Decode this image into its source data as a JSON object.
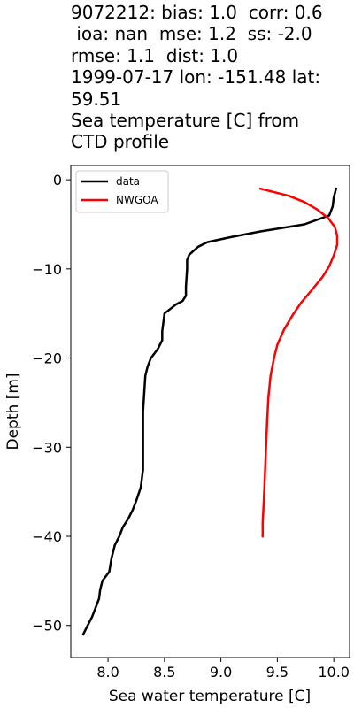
{
  "title_lines": [
    "9072212: bias: 1.0  corr: 0.6",
    " ioa: nan  mse: 1.2  ss: -2.0",
    "rmse: 1.1  dist: 1.0",
    "1999-07-17 lon: -151.48 lat:",
    "59.51",
    "Sea temperature [C] from",
    "CTD profile"
  ],
  "chart_data": {
    "type": "line",
    "xlabel": "Sea water temperature [C]",
    "ylabel": "Depth [m]",
    "xlim": [
      7.67,
      10.14
    ],
    "ylim": [
      -53.6,
      1.6
    ],
    "xticks": [
      8.0,
      8.5,
      9.0,
      9.5,
      10.0
    ],
    "xtick_labels": [
      "8.0",
      "8.5",
      "9.0",
      "9.5",
      "10.0"
    ],
    "yticks": [
      0,
      -10,
      -20,
      -30,
      -40,
      -50
    ],
    "ytick_labels": [
      "0",
      "−10",
      "−20",
      "−30",
      "−40",
      "−50"
    ],
    "grid": false,
    "legend_position": "top-left",
    "series": [
      {
        "name": "data",
        "color": "#000000",
        "points": [
          [
            10.02,
            -1.0
          ],
          [
            10.0,
            -2.0
          ],
          [
            9.99,
            -3.0
          ],
          [
            9.96,
            -4.0
          ],
          [
            9.74,
            -5.0
          ],
          [
            9.35,
            -5.8
          ],
          [
            9.1,
            -6.4
          ],
          [
            8.88,
            -7.0
          ],
          [
            8.8,
            -7.5
          ],
          [
            8.72,
            -8.4
          ],
          [
            8.7,
            -9.0
          ],
          [
            8.7,
            -10.0
          ],
          [
            8.69,
            -12.0
          ],
          [
            8.69,
            -13.0
          ],
          [
            8.66,
            -13.6
          ],
          [
            8.6,
            -14.0
          ],
          [
            8.54,
            -14.6
          ],
          [
            8.5,
            -15.0
          ],
          [
            8.49,
            -16.0
          ],
          [
            8.48,
            -17.0
          ],
          [
            8.48,
            -18.0
          ],
          [
            8.44,
            -19.0
          ],
          [
            8.38,
            -20.0
          ],
          [
            8.35,
            -21.0
          ],
          [
            8.33,
            -22.0
          ],
          [
            8.32,
            -24.0
          ],
          [
            8.31,
            -26.0
          ],
          [
            8.31,
            -32.5
          ],
          [
            8.29,
            -34.5
          ],
          [
            8.25,
            -36.0
          ],
          [
            8.22,
            -37.0
          ],
          [
            8.18,
            -38.0
          ],
          [
            8.13,
            -39.0
          ],
          [
            8.1,
            -40.0
          ],
          [
            8.06,
            -41.0
          ],
          [
            8.03,
            -42.5
          ],
          [
            8.01,
            -44.0
          ],
          [
            7.95,
            -45.0
          ],
          [
            7.93,
            -46.0
          ],
          [
            7.92,
            -47.0
          ],
          [
            7.89,
            -48.0
          ],
          [
            7.86,
            -49.0
          ],
          [
            7.82,
            -50.0
          ],
          [
            7.78,
            -51.0
          ]
        ]
      },
      {
        "name": "NWGOA",
        "color": "#ff0000",
        "points": [
          [
            9.35,
            -1.0
          ],
          [
            9.6,
            -1.8
          ],
          [
            9.74,
            -2.5
          ],
          [
            9.85,
            -3.3
          ],
          [
            9.95,
            -4.3
          ],
          [
            10.01,
            -5.3
          ],
          [
            10.03,
            -6.3
          ],
          [
            10.03,
            -7.3
          ],
          [
            10.0,
            -8.5
          ],
          [
            9.96,
            -9.7
          ],
          [
            9.9,
            -10.9
          ],
          [
            9.81,
            -12.3
          ],
          [
            9.71,
            -13.8
          ],
          [
            9.64,
            -15.1
          ],
          [
            9.56,
            -16.8
          ],
          [
            9.5,
            -18.5
          ],
          [
            9.47,
            -20.0
          ],
          [
            9.44,
            -22.0
          ],
          [
            9.42,
            -24.5
          ],
          [
            9.41,
            -27.0
          ],
          [
            9.4,
            -30.0
          ],
          [
            9.39,
            -33.0
          ],
          [
            9.38,
            -36.0
          ],
          [
            9.37,
            -38.5
          ],
          [
            9.37,
            -40.0
          ]
        ]
      }
    ]
  }
}
